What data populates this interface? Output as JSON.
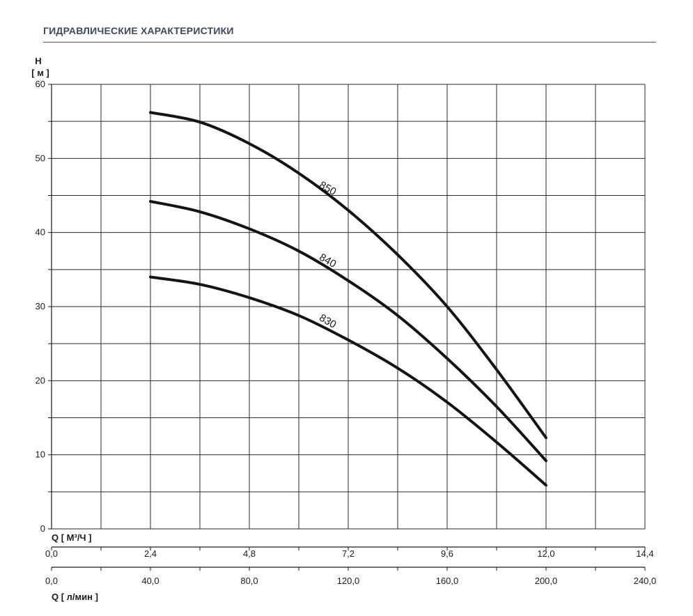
{
  "header": {
    "title": "ГИДРАВЛИЧЕСКИЕ ХАРАКТЕРИСТИКИ"
  },
  "chart_data": {
    "type": "line",
    "title": "",
    "ylabel": {
      "name": "H",
      "unit": "[ м ]"
    },
    "ylim": [
      0,
      60
    ],
    "yticks": [
      "0",
      "10",
      "20",
      "30",
      "40",
      "50",
      "60"
    ],
    "x_primary": {
      "label": "Q [ М³/Ч ]",
      "range": [
        0,
        14.4
      ],
      "ticks": [
        0.0,
        2.4,
        4.8,
        7.2,
        9.6,
        12.0,
        14.4
      ],
      "tick_labels": [
        "0,0",
        "2,4",
        "4,8",
        "7,2",
        "9,6",
        "12,0",
        "14,4"
      ]
    },
    "x_secondary": {
      "label": "Q [ л/мин ]",
      "range": [
        0,
        240
      ],
      "ticks": [
        0,
        40,
        80,
        120,
        160,
        200,
        240
      ],
      "tick_labels": [
        "0,0",
        "40,0",
        "80,0",
        "120,0",
        "160,0",
        "200,0",
        "240,0"
      ]
    },
    "grid": true,
    "series": [
      {
        "name": "850",
        "x": [
          2.4,
          3.6,
          4.8,
          6.0,
          7.2,
          8.4,
          9.6,
          10.8,
          12.0
        ],
        "y": [
          56.2,
          54.9,
          52.0,
          48.0,
          43.0,
          37.0,
          30.0,
          21.5,
          12.3
        ]
      },
      {
        "name": "840",
        "x": [
          2.4,
          3.6,
          4.8,
          6.0,
          7.2,
          8.4,
          9.6,
          10.8,
          12.0
        ],
        "y": [
          44.2,
          42.8,
          40.5,
          37.5,
          33.5,
          28.8,
          23.0,
          16.5,
          9.2
        ]
      },
      {
        "name": "830",
        "x": [
          2.4,
          3.6,
          4.8,
          6.0,
          7.2,
          8.4,
          9.6,
          10.8,
          12.0
        ],
        "y": [
          34.0,
          33.0,
          31.2,
          28.8,
          25.5,
          21.7,
          17.1,
          11.7,
          5.9
        ]
      }
    ]
  }
}
